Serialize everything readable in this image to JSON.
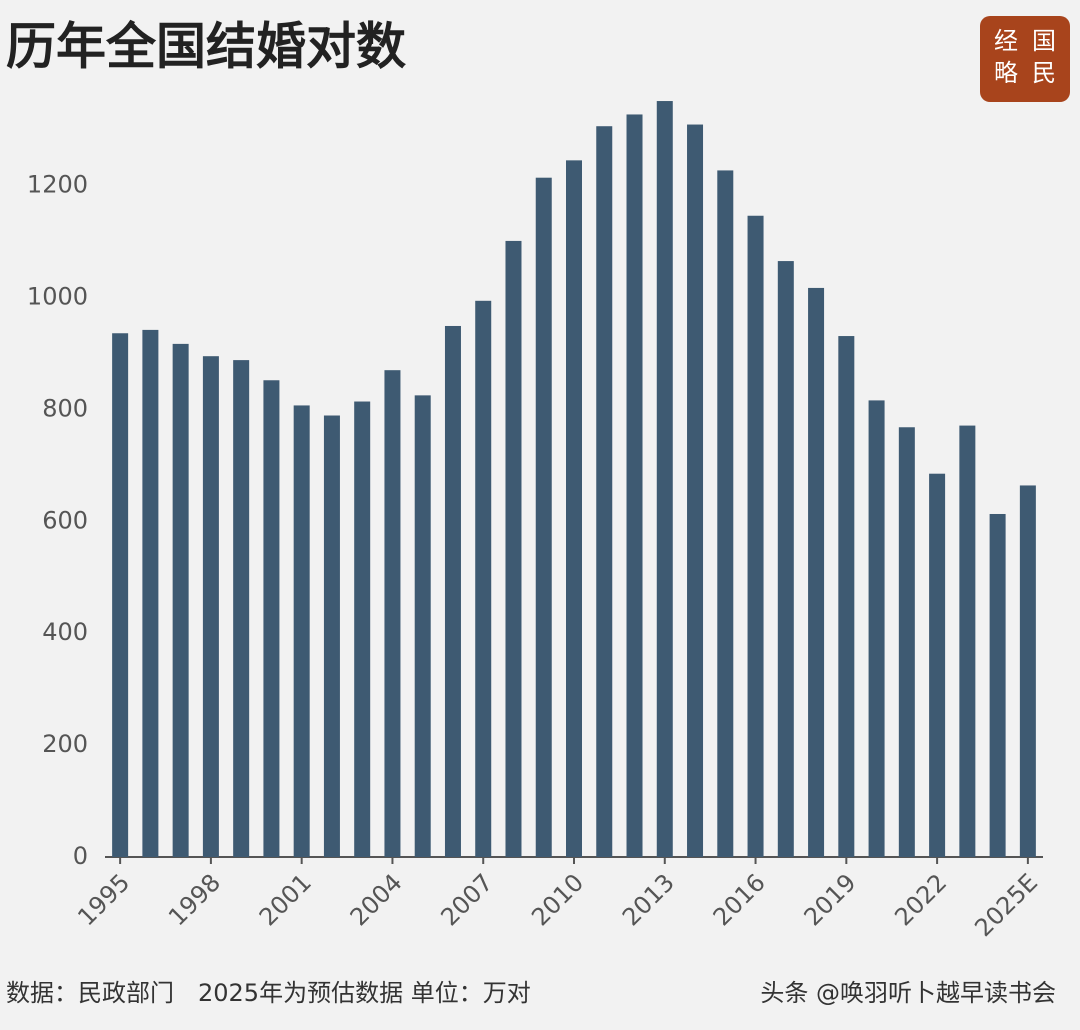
{
  "chart_data": {
    "type": "bar",
    "title": "历年全国结婚对数",
    "logo": [
      "经",
      "国",
      "略",
      "民"
    ],
    "categories": [
      "1995",
      null,
      null,
      "1998",
      null,
      null,
      "2001",
      null,
      null,
      "2004",
      null,
      null,
      "2007",
      null,
      null,
      "2010",
      null,
      null,
      "2013",
      null,
      null,
      "2016",
      null,
      null,
      "2019",
      null,
      null,
      "2022",
      null,
      null,
      "2025E"
    ],
    "values": [
      936,
      942,
      917,
      895,
      888,
      852,
      807,
      789,
      814,
      870,
      825,
      949,
      994,
      1101,
      1214,
      1245,
      1306,
      1327,
      1351,
      1309,
      1227,
      1146,
      1065,
      1017,
      931,
      816,
      768,
      685,
      771,
      613,
      664
    ],
    "color": "#3e5a72",
    "ylim": [
      0,
      1360
    ],
    "yticks": [
      0,
      200,
      400,
      600,
      800,
      1000,
      1200
    ],
    "footnote": "数据：民政部门　2025年为预估数据  单位：万对",
    "watermark": "头条 @唤羽听卜越早读书会"
  }
}
